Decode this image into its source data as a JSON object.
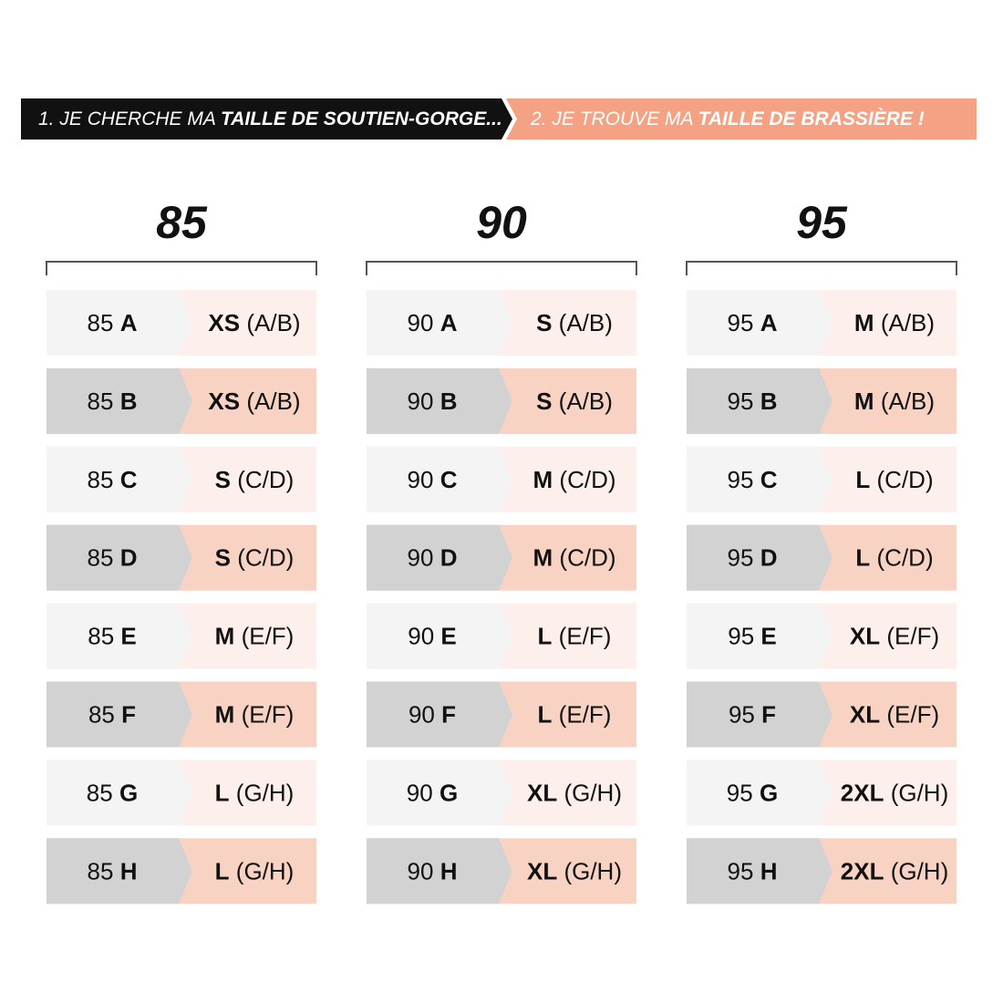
{
  "header": {
    "step1": {
      "prefix": "1. JE CHERCHE MA",
      "bold": "TAILLE DE SOUTIEN-GORGE..."
    },
    "step2": {
      "prefix": "2. JE TROUVE MA",
      "bold": "TAILLE DE BRASSIÈRE  !"
    }
  },
  "columns": [
    {
      "band": "85",
      "rows": [
        {
          "band": "85",
          "cup": "A",
          "size": "XS",
          "range": "(A/B)"
        },
        {
          "band": "85",
          "cup": "B",
          "size": "XS",
          "range": "(A/B)"
        },
        {
          "band": "85",
          "cup": "C",
          "size": "S",
          "range": "(C/D)"
        },
        {
          "band": "85",
          "cup": "D",
          "size": "S",
          "range": "(C/D)"
        },
        {
          "band": "85",
          "cup": "E",
          "size": "M",
          "range": "(E/F)"
        },
        {
          "band": "85",
          "cup": "F",
          "size": "M",
          "range": "(E/F)"
        },
        {
          "band": "85",
          "cup": "G",
          "size": "L",
          "range": "(G/H)"
        },
        {
          "band": "85",
          "cup": "H",
          "size": "L",
          "range": "(G/H)"
        }
      ]
    },
    {
      "band": "90",
      "rows": [
        {
          "band": "90",
          "cup": "A",
          "size": "S",
          "range": "(A/B)"
        },
        {
          "band": "90",
          "cup": "B",
          "size": "S",
          "range": "(A/B)"
        },
        {
          "band": "90",
          "cup": "C",
          "size": "M",
          "range": "(C/D)"
        },
        {
          "band": "90",
          "cup": "D",
          "size": "M",
          "range": "(C/D)"
        },
        {
          "band": "90",
          "cup": "E",
          "size": "L",
          "range": "(E/F)"
        },
        {
          "band": "90",
          "cup": "F",
          "size": "L",
          "range": "(E/F)"
        },
        {
          "band": "90",
          "cup": "G",
          "size": "XL",
          "range": "(G/H)"
        },
        {
          "band": "90",
          "cup": "H",
          "size": "XL",
          "range": "(G/H)"
        }
      ]
    },
    {
      "band": "95",
      "rows": [
        {
          "band": "95",
          "cup": "A",
          "size": "M",
          "range": "(A/B)"
        },
        {
          "band": "95",
          "cup": "B",
          "size": "M",
          "range": "(A/B)"
        },
        {
          "band": "95",
          "cup": "C",
          "size": "L",
          "range": "(C/D)"
        },
        {
          "band": "95",
          "cup": "D",
          "size": "L",
          "range": "(C/D)"
        },
        {
          "band": "95",
          "cup": "E",
          "size": "XL",
          "range": "(E/F)"
        },
        {
          "band": "95",
          "cup": "F",
          "size": "XL",
          "range": "(E/F)"
        },
        {
          "band": "95",
          "cup": "G",
          "size": "2XL",
          "range": "(G/H)"
        },
        {
          "band": "95",
          "cup": "H",
          "size": "2XL",
          "range": "(G/H)"
        }
      ]
    }
  ]
}
